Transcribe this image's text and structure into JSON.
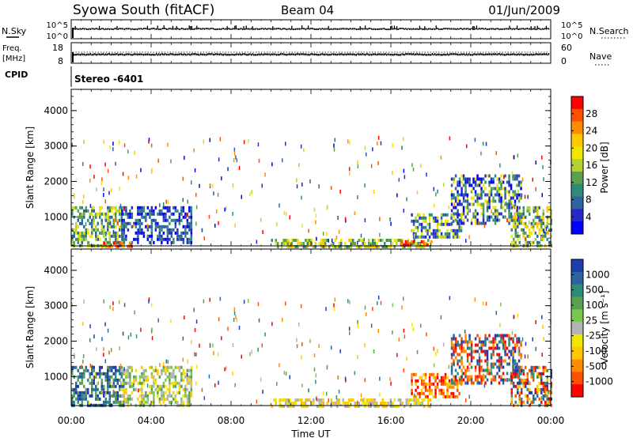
{
  "header": {
    "station": "Syowa South (fitACF)",
    "beam": "Beam 04",
    "date": "01/Jun/2009"
  },
  "panels": {
    "nsky": {
      "label": "N.Sky",
      "ticks": [
        "10^5",
        "10^0"
      ]
    },
    "nsearch": {
      "label": "N.Search",
      "ticks": [
        "10^5",
        "10^0"
      ]
    },
    "freq": {
      "label_line1": "Freq.",
      "label_line2": "[MHz]",
      "ticks": [
        "18",
        "8"
      ]
    },
    "nave": {
      "label": "Nave",
      "ticks": [
        "60",
        "0"
      ]
    },
    "cpid": {
      "label": "CPID",
      "value": "Stereo -6401"
    }
  },
  "axes": {
    "xlabel": "Time UT",
    "ylabel": "Slant Range [km]",
    "xticks": [
      "00:00",
      "04:00",
      "08:00",
      "12:00",
      "16:00",
      "20:00",
      "00:00"
    ],
    "yticks": [
      "1000",
      "2000",
      "3000",
      "4000"
    ]
  },
  "colorbars": {
    "power": {
      "label": "Power [dB]",
      "ticks": [
        "28",
        "24",
        "20",
        "16",
        "12",
        "8",
        "4"
      ],
      "colors": [
        "#ff0000",
        "#ff5000",
        "#ff8c00",
        "#ffc800",
        "#f0e600",
        "#b4d232",
        "#5aa050",
        "#2d8c78",
        "#2d64a0",
        "#2828c8",
        "#0000ff"
      ]
    },
    "velocity": {
      "label": "Velocity [m s⁻¹]",
      "ticks": [
        "1000",
        "500",
        "100",
        "25",
        "-25",
        "-100",
        "-500",
        "-1000"
      ],
      "colors": [
        "#1e3caa",
        "#2d64a0",
        "#2d8c78",
        "#5aa050",
        "#78c850",
        "#b4b4b4",
        "#f0e600",
        "#ffc800",
        "#ff8c00",
        "#ff5000",
        "#ff0000"
      ]
    }
  },
  "chart_data": [
    {
      "type": "heatmap",
      "title": "Power",
      "xlabel": "Time UT",
      "ylabel": "Slant Range [km]",
      "xlim": [
        "00:00",
        "24:00"
      ],
      "ylim": [
        180,
        4600
      ],
      "colorbar_range": [
        0,
        30
      ],
      "colorbar_label": "Power [dB]",
      "echo_regions": [
        {
          "time_start_h": 0.0,
          "time_end_h": 2.6,
          "range_km": [
            200,
            1300
          ],
          "level": "8-24 dB"
        },
        {
          "time_start_h": 1.5,
          "time_end_h": 3.0,
          "range_km": [
            200,
            300
          ],
          "level": "24-30 dB"
        },
        {
          "time_start_h": 2.5,
          "time_end_h": 6.0,
          "range_km": [
            300,
            1300
          ],
          "level": "4-12 dB"
        },
        {
          "time_start_h": 10.0,
          "time_end_h": 18.0,
          "range_km": [
            200,
            380
          ],
          "level": "8-24 dB"
        },
        {
          "time_start_h": 16.5,
          "time_end_h": 18.0,
          "range_km": [
            200,
            340
          ],
          "level": "20-30 dB"
        },
        {
          "time_start_h": 17.0,
          "time_end_h": 19.5,
          "range_km": [
            400,
            1100
          ],
          "level": "4-20 dB"
        },
        {
          "time_start_h": 19.0,
          "time_end_h": 22.5,
          "range_km": [
            800,
            2200
          ],
          "level": "4-20 dB"
        },
        {
          "time_start_h": 22.0,
          "time_end_h": 24.0,
          "range_km": [
            200,
            1300
          ],
          "level": "8-24 dB"
        }
      ]
    },
    {
      "type": "heatmap",
      "title": "Velocity",
      "xlabel": "Time UT",
      "ylabel": "Slant Range [km]",
      "xlim": [
        "00:00",
        "24:00"
      ],
      "ylim": [
        180,
        4600
      ],
      "colorbar_range": [
        -1000,
        1000
      ],
      "colorbar_label": "Velocity [m s⁻¹]",
      "echo_regions": [
        {
          "time_start_h": 0.0,
          "time_end_h": 2.6,
          "range_km": [
            200,
            1300
          ],
          "level": "100 to 1000"
        },
        {
          "time_start_h": 2.5,
          "time_end_h": 6.0,
          "range_km": [
            200,
            1300
          ],
          "level": "-25 to 100"
        },
        {
          "time_start_h": 10.0,
          "time_end_h": 18.0,
          "range_km": [
            200,
            380
          ],
          "level": "-100 to 25"
        },
        {
          "time_start_h": 17.0,
          "time_end_h": 19.5,
          "range_km": [
            400,
            1100
          ],
          "level": "-500 to -100"
        },
        {
          "time_start_h": 19.0,
          "time_end_h": 22.5,
          "range_km": [
            800,
            2200
          ],
          "level": "-1000 to 500"
        },
        {
          "time_start_h": 22.0,
          "time_end_h": 24.0,
          "range_km": [
            200,
            1300
          ],
          "level": "-1000 to 1000"
        }
      ]
    }
  ]
}
